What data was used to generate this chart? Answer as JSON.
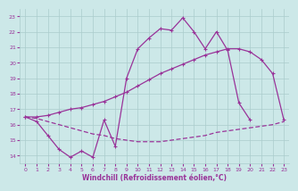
{
  "background_color": "#cce8e8",
  "grid_color": "#aacccc",
  "line_color": "#993399",
  "xlabel": "Windchill (Refroidissement éolien,°C)",
  "ylim": [
    13.5,
    23.5
  ],
  "xlim": [
    -0.5,
    23.5
  ],
  "yticks": [
    14,
    15,
    16,
    17,
    18,
    19,
    20,
    21,
    22,
    23
  ],
  "xticks": [
    0,
    1,
    2,
    3,
    4,
    5,
    6,
    7,
    8,
    9,
    10,
    11,
    12,
    13,
    14,
    15,
    16,
    17,
    18,
    19,
    20,
    21,
    22,
    23
  ],
  "line1_x": [
    0,
    1,
    2,
    3,
    4,
    5,
    6,
    7,
    8,
    9,
    10,
    11,
    12,
    13,
    14,
    15,
    16,
    17,
    18,
    19,
    20
  ],
  "line1_y": [
    16.5,
    16.2,
    15.3,
    14.4,
    13.9,
    14.3,
    13.9,
    16.3,
    14.6,
    19.0,
    20.9,
    21.6,
    22.2,
    22.1,
    22.9,
    22.0,
    20.9,
    22.0,
    20.8,
    17.4,
    16.3
  ],
  "line2_x": [
    0,
    1,
    2,
    3,
    4,
    5,
    6,
    7,
    8,
    9,
    10,
    11,
    12,
    13,
    14,
    15,
    16,
    17,
    18,
    19,
    20,
    21,
    22,
    23
  ],
  "line2_y": [
    16.5,
    16.5,
    16.6,
    16.8,
    17.0,
    17.1,
    17.3,
    17.5,
    17.8,
    18.1,
    18.5,
    18.9,
    19.3,
    19.6,
    19.9,
    20.2,
    20.5,
    20.7,
    20.9,
    20.9,
    20.7,
    20.2,
    19.3,
    16.3
  ],
  "line3_x": [
    0,
    1,
    2,
    3,
    4,
    5,
    6,
    7,
    8,
    9,
    10,
    11,
    12,
    13,
    14,
    15,
    16,
    17,
    18,
    19,
    20,
    21,
    22,
    23
  ],
  "line3_y": [
    16.5,
    16.4,
    16.2,
    16.0,
    15.8,
    15.6,
    15.4,
    15.3,
    15.1,
    15.0,
    14.9,
    14.9,
    14.9,
    15.0,
    15.1,
    15.2,
    15.3,
    15.5,
    15.6,
    15.7,
    15.8,
    15.9,
    16.0,
    16.2
  ]
}
